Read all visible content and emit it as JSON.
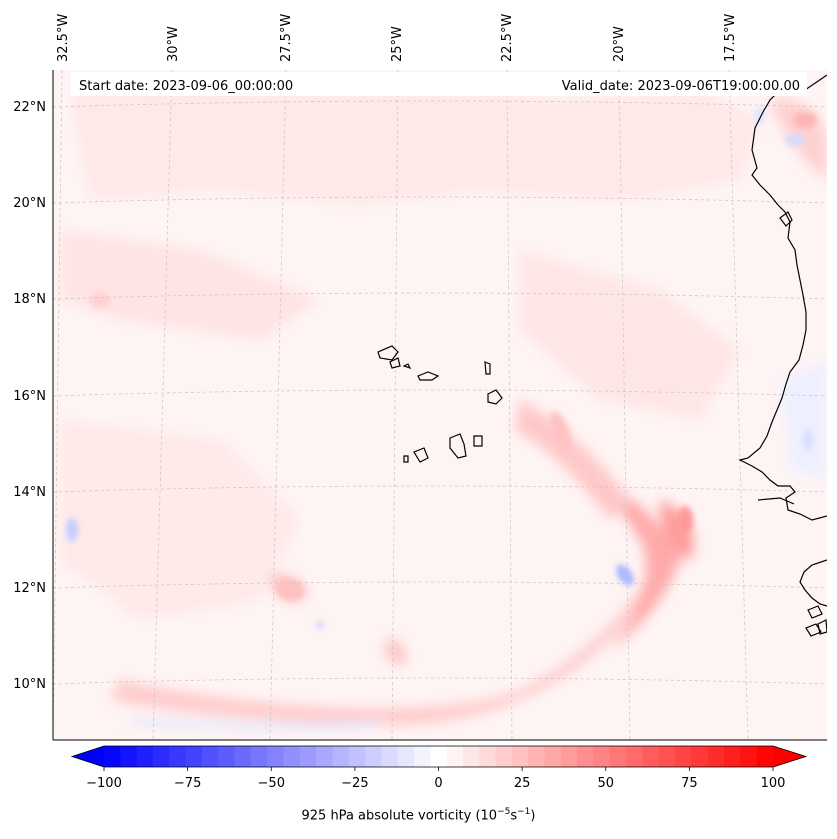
{
  "header": {
    "start_date": "Start date: 2023-09-06_00:00:00",
    "valid_date": "Valid_date: 2023-09-06T19:00:00.00"
  },
  "map": {
    "field": "925 hPa absolute vorticity",
    "lon_ticks": [
      "32.5°W",
      "30°W",
      "27.5°W",
      "25°W",
      "22.5°W",
      "20°W",
      "17.5°W"
    ],
    "lat_ticks": [
      "22°N",
      "20°N",
      "18°N",
      "16°N",
      "14°N",
      "12°N",
      "10°N"
    ],
    "gridlines": true,
    "features": [
      "Cape Verde islands",
      "West African coastline"
    ],
    "colors": {
      "negative": "#0000ff",
      "neutral": "#ffffff",
      "positive": "#ff0000",
      "coast": "#000000"
    }
  },
  "colorbar": {
    "ticks": [
      "−100",
      "−75",
      "−50",
      "−25",
      "0",
      "25",
      "50",
      "75",
      "100"
    ],
    "min": -100,
    "max": 100,
    "levels": 41,
    "extend": "both",
    "label_main": "925 hPa absolute vorticity (10",
    "label_exp1": "−5",
    "label_mid": "s",
    "label_exp2": "−1",
    "label_end": ")"
  }
}
